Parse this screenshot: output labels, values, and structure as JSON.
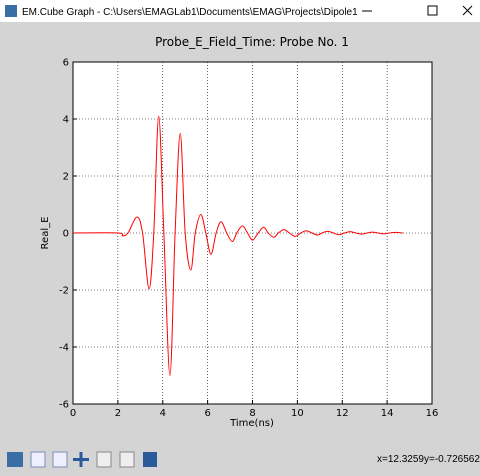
{
  "window": {
    "title": "EM.Cube Graph - C:\\Users\\EMAGLab1\\Documents\\EMAG\\Projects\\Dipole1"
  },
  "status": {
    "x": "x=12.3259",
    "y": "y=-0.726562"
  },
  "chart_data": {
    "type": "line",
    "title": "Probe_E_Field_Time: Probe No. 1",
    "x_label": "Time(ns)",
    "y_label": "Real_E",
    "x": [
      0,
      2.0,
      2.2,
      2.45,
      2.85,
      3.1,
      3.39,
      3.6,
      3.82,
      4.05,
      4.32,
      4.55,
      4.78,
      5.0,
      5.25,
      5.45,
      5.7,
      5.92,
      6.15,
      6.38,
      6.6,
      6.85,
      7.1,
      7.3,
      7.55,
      7.78,
      8.0,
      8.25,
      8.5,
      8.7,
      8.95,
      9.15,
      9.4,
      9.65,
      9.9,
      10.15,
      10.4,
      10.65,
      10.9,
      11.1,
      11.35,
      11.6,
      11.85,
      12.1,
      12.35,
      12.6,
      12.85,
      13.1,
      13.35,
      13.6,
      13.85,
      14.1,
      14.35,
      14.7
    ],
    "series": [
      {
        "name": "Real_E",
        "color": "#ff0000",
        "values": [
          0,
          0,
          -0.1,
          0,
          0.56,
          0,
          -1.96,
          0,
          4.1,
          0,
          -5.0,
          0,
          3.5,
          0,
          -1.3,
          0,
          0.65,
          0,
          -0.75,
          0,
          0.4,
          0,
          -0.3,
          0,
          0.25,
          0,
          -0.25,
          0,
          0.2,
          0,
          -0.15,
          0,
          0.12,
          0,
          -0.12,
          0,
          0.08,
          0,
          -0.07,
          0,
          0.06,
          0,
          -0.06,
          0,
          0.05,
          0,
          -0.04,
          0,
          0.03,
          0,
          -0.03,
          0,
          0.02,
          0
        ]
      }
    ],
    "xlim": [
      0,
      16
    ],
    "xticks": [
      0,
      2,
      4,
      6,
      8,
      10,
      12,
      14,
      16
    ],
    "ylim": [
      -6,
      6
    ],
    "yticks": [
      -6,
      -4,
      -2,
      0,
      2,
      4,
      6
    ],
    "grid": true
  }
}
